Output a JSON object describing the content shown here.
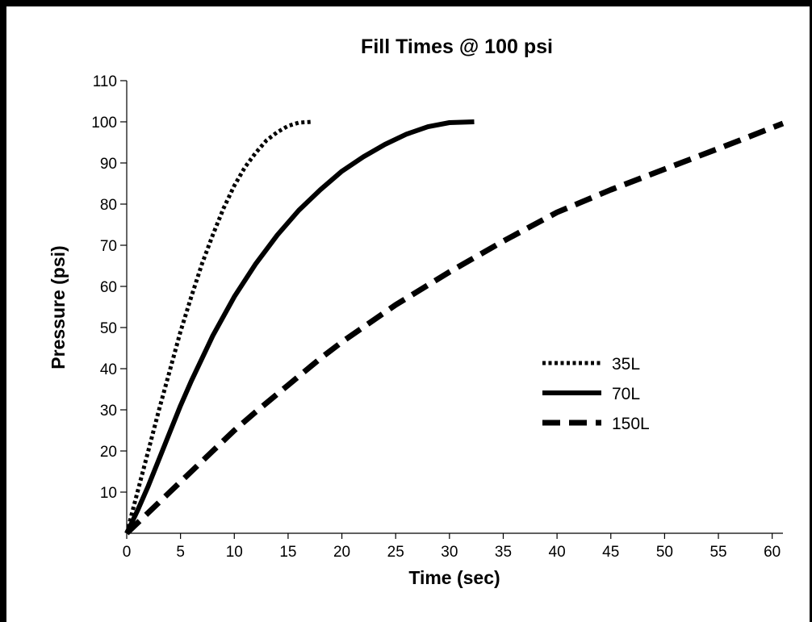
{
  "chart_data": {
    "type": "line",
    "title": "Fill Times @ 100 psi",
    "xlabel": "Time (sec)",
    "ylabel": "Pressure (psi)",
    "xlim": [
      0,
      61
    ],
    "ylim": [
      0,
      110
    ],
    "x_ticks": [
      0,
      5,
      10,
      15,
      20,
      25,
      30,
      35,
      40,
      45,
      50,
      55,
      60
    ],
    "y_ticks": [
      10,
      20,
      30,
      40,
      50,
      60,
      70,
      80,
      90,
      100,
      110
    ],
    "grid": false,
    "legend_position": "center-right",
    "series": [
      {
        "name": "35L",
        "style": "dotted",
        "x": [
          0,
          1,
          2,
          3,
          4,
          5,
          6,
          7,
          8,
          9,
          10,
          11,
          12,
          13,
          14,
          15,
          16,
          17.2
        ],
        "y": [
          0,
          10,
          20,
          30,
          39.5,
          49,
          57.5,
          65.5,
          72.5,
          79,
          84.5,
          89,
          92.5,
          95.5,
          97.5,
          99,
          99.8,
          100
        ]
      },
      {
        "name": "70L",
        "style": "solid",
        "x": [
          0,
          1,
          2,
          3,
          4,
          5,
          6,
          8,
          10,
          12,
          14,
          16,
          18,
          20,
          22,
          24,
          26,
          28,
          30,
          32.3
        ],
        "y": [
          0,
          5.5,
          11.5,
          18,
          24.5,
          31,
          37,
          48,
          57.5,
          65.5,
          72.5,
          78.5,
          83.5,
          88,
          91.5,
          94.5,
          97,
          98.8,
          99.8,
          100
        ]
      },
      {
        "name": "150L",
        "style": "dashed",
        "x": [
          0,
          2,
          4,
          6,
          8,
          10,
          12,
          15,
          18,
          20,
          25,
          30,
          35,
          40,
          45,
          50,
          55,
          57,
          61
        ],
        "y": [
          0,
          5,
          10,
          15,
          20,
          25,
          29.5,
          36,
          42.5,
          46.5,
          55.5,
          63.5,
          71,
          78,
          83.5,
          88.5,
          93.5,
          95.5,
          99.6
        ]
      }
    ]
  }
}
